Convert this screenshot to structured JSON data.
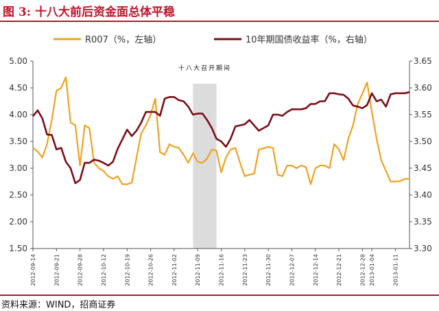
{
  "figure": {
    "title": "图 3: 十八大前后资金面总体平稳",
    "source": "资料来源：WIND，招商证券"
  },
  "colors": {
    "title": "#c0122a",
    "r007": "#f0a21e",
    "bond": "#7a0c16",
    "shade": "#dcdcdc",
    "axis": "#555555"
  },
  "chart_data": {
    "type": "line",
    "x_dates": [
      "2012-09-14",
      "2012-09-17",
      "2012-09-18",
      "2012-09-19",
      "2012-09-20",
      "2012-09-21",
      "2012-09-24",
      "2012-09-25",
      "2012-09-26",
      "2012-09-27",
      "2012-09-28",
      "2012-10-08",
      "2012-10-09",
      "2012-10-10",
      "2012-10-11",
      "2012-10-12",
      "2012-10-15",
      "2012-10-16",
      "2012-10-17",
      "2012-10-18",
      "2012-10-19",
      "2012-10-22",
      "2012-10-23",
      "2012-10-24",
      "2012-10-25",
      "2012-10-26",
      "2012-10-29",
      "2012-10-30",
      "2012-10-31",
      "2012-11-01",
      "2012-11-02",
      "2012-11-05",
      "2012-11-06",
      "2012-11-07",
      "2012-11-08",
      "2012-11-09",
      "2012-11-12",
      "2012-11-13",
      "2012-11-14",
      "2012-11-15",
      "2012-11-16",
      "2012-11-19",
      "2012-11-20",
      "2012-11-21",
      "2012-11-22",
      "2012-11-23",
      "2012-11-26",
      "2012-11-27",
      "2012-11-28",
      "2012-11-29",
      "2012-11-30",
      "2012-12-03",
      "2012-12-04",
      "2012-12-05",
      "2012-12-06",
      "2012-12-07",
      "2012-12-10",
      "2012-12-11",
      "2012-12-12",
      "2012-12-13",
      "2012-12-14",
      "2012-12-17",
      "2012-12-18",
      "2012-12-19",
      "2012-12-20",
      "2012-12-21",
      "2012-12-24",
      "2012-12-25",
      "2012-12-26",
      "2012-12-27",
      "2012-12-28",
      "2012-12-31",
      "2013-01-04",
      "2013-01-07",
      "2013-01-08",
      "2013-01-09",
      "2013-01-10",
      "2013-01-11",
      "2013-01-14",
      "2013-01-15",
      "2013-01-16"
    ],
    "x_tick_labels": [
      "2012-09-14",
      "2012-09-21",
      "2012-09-28",
      "2012-10-05",
      "2012-10-12",
      "2012-10-19",
      "2012-10-26",
      "2012-11-02",
      "2012-11-09",
      "2012-11-16",
      "2012-11-23",
      "2012-11-30",
      "2012-12-07",
      "2012-12-14",
      "2012-12-21",
      "2012-12-28",
      "2013-01-04",
      "2013-01-11"
    ],
    "x_range": [
      "2012-09-14",
      "2013-01-16"
    ],
    "series": [
      {
        "name": "R007（%，左轴）",
        "axis": "left",
        "points": [
          [
            "2012-09-14",
            3.38
          ],
          [
            "2012-09-17",
            3.31
          ],
          [
            "2012-09-18",
            3.2
          ],
          [
            "2012-09-19",
            3.45
          ],
          [
            "2012-09-20",
            3.9
          ],
          [
            "2012-09-21",
            4.45
          ],
          [
            "2012-09-24",
            4.5
          ],
          [
            "2012-09-25",
            4.7
          ],
          [
            "2012-09-26",
            3.85
          ],
          [
            "2012-09-27",
            3.8
          ],
          [
            "2012-09-28",
            3.05
          ],
          [
            "2012-10-08",
            3.8
          ],
          [
            "2012-10-09",
            3.75
          ],
          [
            "2012-10-10",
            3.1
          ],
          [
            "2012-10-11",
            3.0
          ],
          [
            "2012-10-12",
            2.95
          ],
          [
            "2012-10-15",
            2.85
          ],
          [
            "2012-10-16",
            2.8
          ],
          [
            "2012-10-17",
            2.85
          ],
          [
            "2012-10-18",
            2.7
          ],
          [
            "2012-10-19",
            2.7
          ],
          [
            "2012-10-22",
            2.73
          ],
          [
            "2012-10-23",
            3.2
          ],
          [
            "2012-10-24",
            3.65
          ],
          [
            "2012-10-25",
            3.8
          ],
          [
            "2012-10-26",
            4.0
          ],
          [
            "2012-10-29",
            4.3
          ],
          [
            "2012-10-30",
            3.3
          ],
          [
            "2012-10-31",
            3.25
          ],
          [
            "2012-11-01",
            3.45
          ],
          [
            "2012-11-02",
            3.4
          ],
          [
            "2012-11-05",
            3.38
          ],
          [
            "2012-11-06",
            3.25
          ],
          [
            "2012-11-07",
            3.1
          ],
          [
            "2012-11-08",
            3.28
          ],
          [
            "2012-11-09",
            3.12
          ],
          [
            "2012-11-12",
            3.1
          ],
          [
            "2012-11-13",
            3.18
          ],
          [
            "2012-11-14",
            3.35
          ],
          [
            "2012-11-15",
            3.33
          ],
          [
            "2012-11-16",
            2.92
          ],
          [
            "2012-11-19",
            3.2
          ],
          [
            "2012-11-20",
            3.35
          ],
          [
            "2012-11-21",
            3.38
          ],
          [
            "2012-11-22",
            3.1
          ],
          [
            "2012-11-23",
            2.85
          ],
          [
            "2012-11-26",
            2.88
          ],
          [
            "2012-11-27",
            2.9
          ],
          [
            "2012-11-28",
            3.35
          ],
          [
            "2012-11-29",
            3.37
          ],
          [
            "2012-11-30",
            3.4
          ],
          [
            "2012-12-03",
            3.38
          ],
          [
            "2012-12-04",
            2.88
          ],
          [
            "2012-12-05",
            2.85
          ],
          [
            "2012-12-06",
            3.05
          ],
          [
            "2012-12-07",
            3.05
          ],
          [
            "2012-12-10",
            3.0
          ],
          [
            "2012-12-11",
            3.05
          ],
          [
            "2012-12-12",
            3.02
          ],
          [
            "2012-12-13",
            2.7
          ],
          [
            "2012-12-14",
            3.0
          ],
          [
            "2012-12-17",
            3.05
          ],
          [
            "2012-12-18",
            3.05
          ],
          [
            "2012-12-19",
            3.0
          ],
          [
            "2012-12-20",
            3.45
          ],
          [
            "2012-12-21",
            3.35
          ],
          [
            "2012-12-24",
            3.15
          ],
          [
            "2012-12-25",
            3.55
          ],
          [
            "2012-12-26",
            3.8
          ],
          [
            "2012-12-27",
            4.2
          ],
          [
            "2012-12-28",
            4.4
          ],
          [
            "2012-12-31",
            4.6
          ],
          [
            "2013-01-04",
            4.05
          ],
          [
            "2013-01-07",
            3.55
          ],
          [
            "2013-01-08",
            3.15
          ],
          [
            "2013-01-09",
            2.95
          ],
          [
            "2013-01-10",
            2.75
          ],
          [
            "2013-01-11",
            2.75
          ],
          [
            "2013-01-14",
            2.76
          ],
          [
            "2013-01-15",
            2.8
          ],
          [
            "2013-01-16",
            2.8
          ]
        ]
      },
      {
        "name": "10年期国债收益率（%，右轴）",
        "axis": "right",
        "points": [
          [
            "2012-09-14",
            3.547
          ],
          [
            "2012-09-17",
            3.558
          ],
          [
            "2012-09-18",
            3.543
          ],
          [
            "2012-09-19",
            3.513
          ],
          [
            "2012-09-20",
            3.512
          ],
          [
            "2012-09-21",
            3.485
          ],
          [
            "2012-09-24",
            3.488
          ],
          [
            "2012-09-25",
            3.462
          ],
          [
            "2012-09-26",
            3.45
          ],
          [
            "2012-09-27",
            3.422
          ],
          [
            "2012-09-28",
            3.428
          ],
          [
            "2012-10-08",
            3.46
          ],
          [
            "2012-10-09",
            3.46
          ],
          [
            "2012-10-10",
            3.466
          ],
          [
            "2012-10-11",
            3.464
          ],
          [
            "2012-10-12",
            3.46
          ],
          [
            "2012-10-15",
            3.455
          ],
          [
            "2012-10-16",
            3.462
          ],
          [
            "2012-10-17",
            3.486
          ],
          [
            "2012-10-18",
            3.504
          ],
          [
            "2012-10-19",
            3.522
          ],
          [
            "2012-10-22",
            3.51
          ],
          [
            "2012-10-23",
            3.52
          ],
          [
            "2012-10-24",
            3.535
          ],
          [
            "2012-10-25",
            3.555
          ],
          [
            "2012-10-26",
            3.555
          ],
          [
            "2012-10-29",
            3.555
          ],
          [
            "2012-10-30",
            3.548
          ],
          [
            "2012-10-31",
            3.58
          ],
          [
            "2012-11-01",
            3.583
          ],
          [
            "2012-11-02",
            3.583
          ],
          [
            "2012-11-05",
            3.577
          ],
          [
            "2012-11-06",
            3.575
          ],
          [
            "2012-11-07",
            3.565
          ],
          [
            "2012-11-08",
            3.55
          ],
          [
            "2012-11-09",
            3.552
          ],
          [
            "2012-11-12",
            3.552
          ],
          [
            "2012-11-13",
            3.54
          ],
          [
            "2012-11-14",
            3.525
          ],
          [
            "2012-11-15",
            3.505
          ],
          [
            "2012-11-16",
            3.5
          ],
          [
            "2012-11-19",
            3.49
          ],
          [
            "2012-11-20",
            3.505
          ],
          [
            "2012-11-21",
            3.528
          ],
          [
            "2012-11-22",
            3.53
          ],
          [
            "2012-11-23",
            3.532
          ],
          [
            "2012-11-26",
            3.54
          ],
          [
            "2012-11-27",
            3.53
          ],
          [
            "2012-11-28",
            3.52
          ],
          [
            "2012-11-29",
            3.525
          ],
          [
            "2012-11-30",
            3.53
          ],
          [
            "2012-12-03",
            3.55
          ],
          [
            "2012-12-04",
            3.55
          ],
          [
            "2012-12-05",
            3.548
          ],
          [
            "2012-12-06",
            3.555
          ],
          [
            "2012-12-07",
            3.56
          ],
          [
            "2012-12-10",
            3.56
          ],
          [
            "2012-12-11",
            3.56
          ],
          [
            "2012-12-12",
            3.562
          ],
          [
            "2012-12-13",
            3.57
          ],
          [
            "2012-12-14",
            3.57
          ],
          [
            "2012-12-17",
            3.575
          ],
          [
            "2012-12-18",
            3.575
          ],
          [
            "2012-12-19",
            3.59
          ],
          [
            "2012-12-20",
            3.59
          ],
          [
            "2012-12-21",
            3.588
          ],
          [
            "2012-12-24",
            3.587
          ],
          [
            "2012-12-25",
            3.58
          ],
          [
            "2012-12-26",
            3.567
          ],
          [
            "2012-12-27",
            3.565
          ],
          [
            "2012-12-28",
            3.562
          ],
          [
            "2012-12-31",
            3.568
          ],
          [
            "2013-01-04",
            3.59
          ],
          [
            "2013-01-07",
            3.575
          ],
          [
            "2013-01-08",
            3.578
          ],
          [
            "2013-01-09",
            3.565
          ],
          [
            "2013-01-10",
            3.588
          ],
          [
            "2013-01-11",
            3.59
          ],
          [
            "2013-01-14",
            3.59
          ],
          [
            "2013-01-15",
            3.59
          ],
          [
            "2013-01-16",
            3.592
          ]
        ]
      }
    ],
    "y_left": {
      "range": [
        1.5,
        5.0
      ],
      "ticks": [
        "1.50",
        "2.00",
        "2.50",
        "3.00",
        "3.50",
        "4.00",
        "4.50",
        "5.00"
      ]
    },
    "y_right": {
      "range": [
        3.3,
        3.65
      ],
      "ticks": [
        "3.30",
        "3.35",
        "3.40",
        "3.45",
        "3.50",
        "3.55",
        "3.60",
        "3.65"
      ]
    },
    "shaded_period": {
      "start": "2012-11-08",
      "end": "2012-11-15",
      "label": "十八大召开期间"
    },
    "grid": false,
    "legend_position": "top"
  }
}
